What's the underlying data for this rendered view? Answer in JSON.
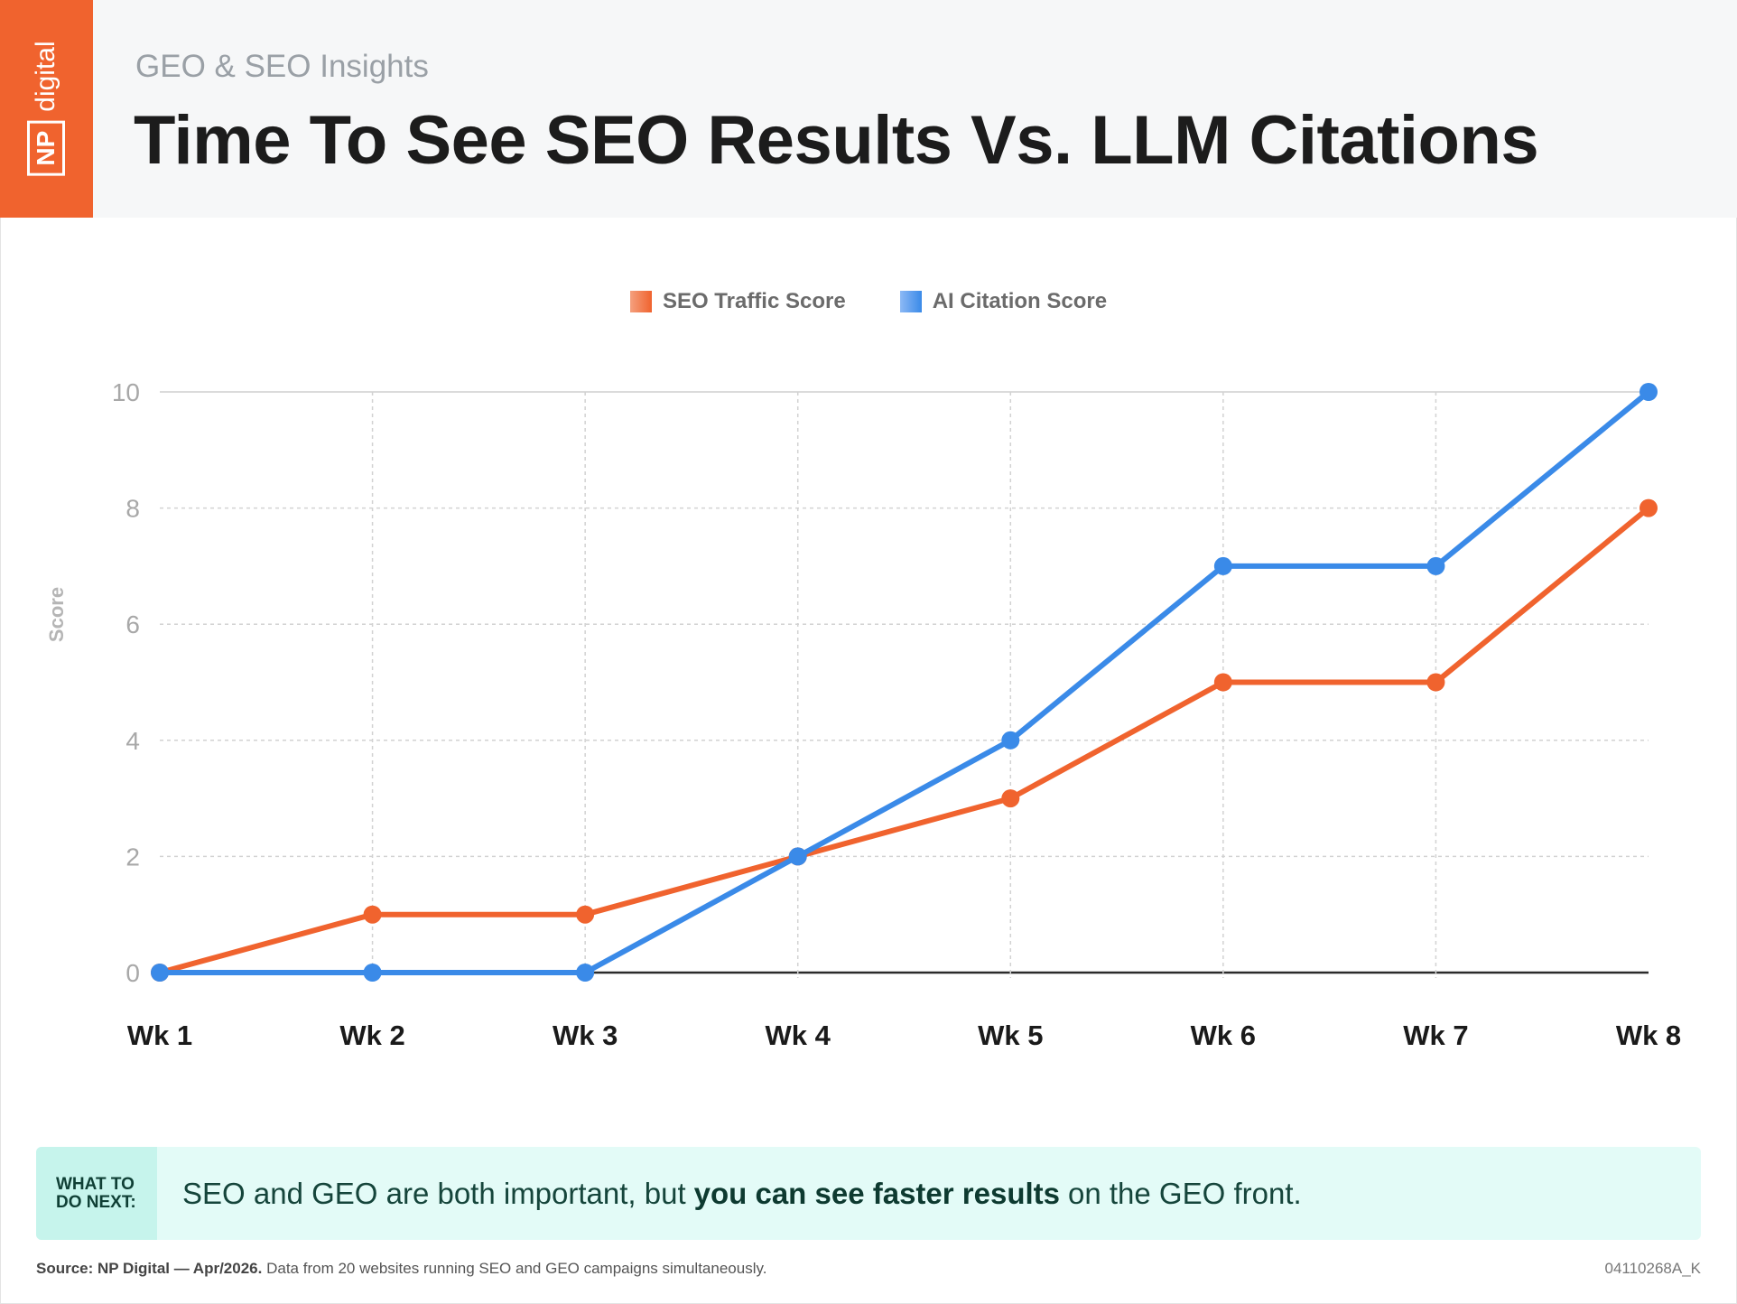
{
  "header": {
    "logo_np": "NP",
    "logo_digital": "digital",
    "subtitle": "GEO & SEO Insights",
    "title": "Time To See SEO Results Vs. LLM Citations"
  },
  "colors": {
    "seo": "#f0632e",
    "ai": "#3a8ae8",
    "callout_bg": "#e3fbf7"
  },
  "chart_data": {
    "type": "line",
    "title": "Time To See SEO Results Vs. LLM Citations",
    "ylabel": "Score",
    "xlabel": "",
    "categories": [
      "Wk 1",
      "Wk 2",
      "Wk 3",
      "Wk 4",
      "Wk 5",
      "Wk 6",
      "Wk 7",
      "Wk 8"
    ],
    "yticks": [
      0,
      2,
      4,
      6,
      8,
      10
    ],
    "ylim": [
      0,
      10
    ],
    "grid": true,
    "legend_position": "top-center",
    "series": [
      {
        "name": "SEO Traffic Score",
        "color": "#f0632e",
        "values": [
          0,
          1,
          1,
          2,
          3,
          5,
          5,
          8
        ]
      },
      {
        "name": "AI Citation Score",
        "color": "#3a8ae8",
        "values": [
          0,
          0,
          0,
          2,
          4,
          7,
          7,
          10
        ]
      }
    ]
  },
  "callout": {
    "tag": "WHAT TO DO NEXT:",
    "text_before": "SEO and GEO are both important, but",
    "text_bold": "you can see faster results",
    "text_after": "on the GEO front."
  },
  "footer": {
    "source_bold": "Source: NP Digital — Apr/2026.",
    "source_rest": "Data from 20 websites running SEO and GEO campaigns simultaneously.",
    "code": "04110268A_K"
  }
}
